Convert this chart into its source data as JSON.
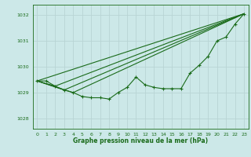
{
  "xlabel": "Graphe pression niveau de la mer (hPa)",
  "ylim": [
    1027.6,
    1032.4
  ],
  "xlim": [
    -0.5,
    23.5
  ],
  "yticks": [
    1028,
    1029,
    1030,
    1031,
    1032
  ],
  "xticks": [
    0,
    1,
    2,
    3,
    4,
    5,
    6,
    7,
    8,
    9,
    10,
    11,
    12,
    13,
    14,
    15,
    16,
    17,
    18,
    19,
    20,
    21,
    22,
    23
  ],
  "bg_color": "#cce8e8",
  "grid_color": "#b8d4d4",
  "line_color": "#1a6b1a",
  "line1_x": [
    0,
    1,
    2,
    3,
    4,
    5,
    6,
    7,
    8,
    9,
    10,
    11,
    12,
    13,
    14,
    15,
    16,
    17,
    18,
    19,
    20,
    21,
    22,
    23
  ],
  "line1_y": [
    1029.45,
    1029.45,
    1029.25,
    1029.1,
    1029.0,
    1028.85,
    1028.8,
    1028.8,
    1028.75,
    1029.0,
    1029.2,
    1029.6,
    1029.3,
    1029.2,
    1029.15,
    1029.15,
    1029.15,
    1029.75,
    1030.05,
    1030.4,
    1031.0,
    1031.15,
    1031.65,
    1032.05
  ],
  "line2_x": [
    0,
    23
  ],
  "line2_y": [
    1029.45,
    1032.05
  ],
  "line3_x": [
    0,
    2,
    23
  ],
  "line3_y": [
    1029.45,
    1029.25,
    1032.05
  ],
  "line4_x": [
    0,
    3,
    23
  ],
  "line4_y": [
    1029.45,
    1029.1,
    1032.05
  ],
  "line5_x": [
    0,
    4,
    23
  ],
  "line5_y": [
    1029.45,
    1029.0,
    1032.05
  ]
}
